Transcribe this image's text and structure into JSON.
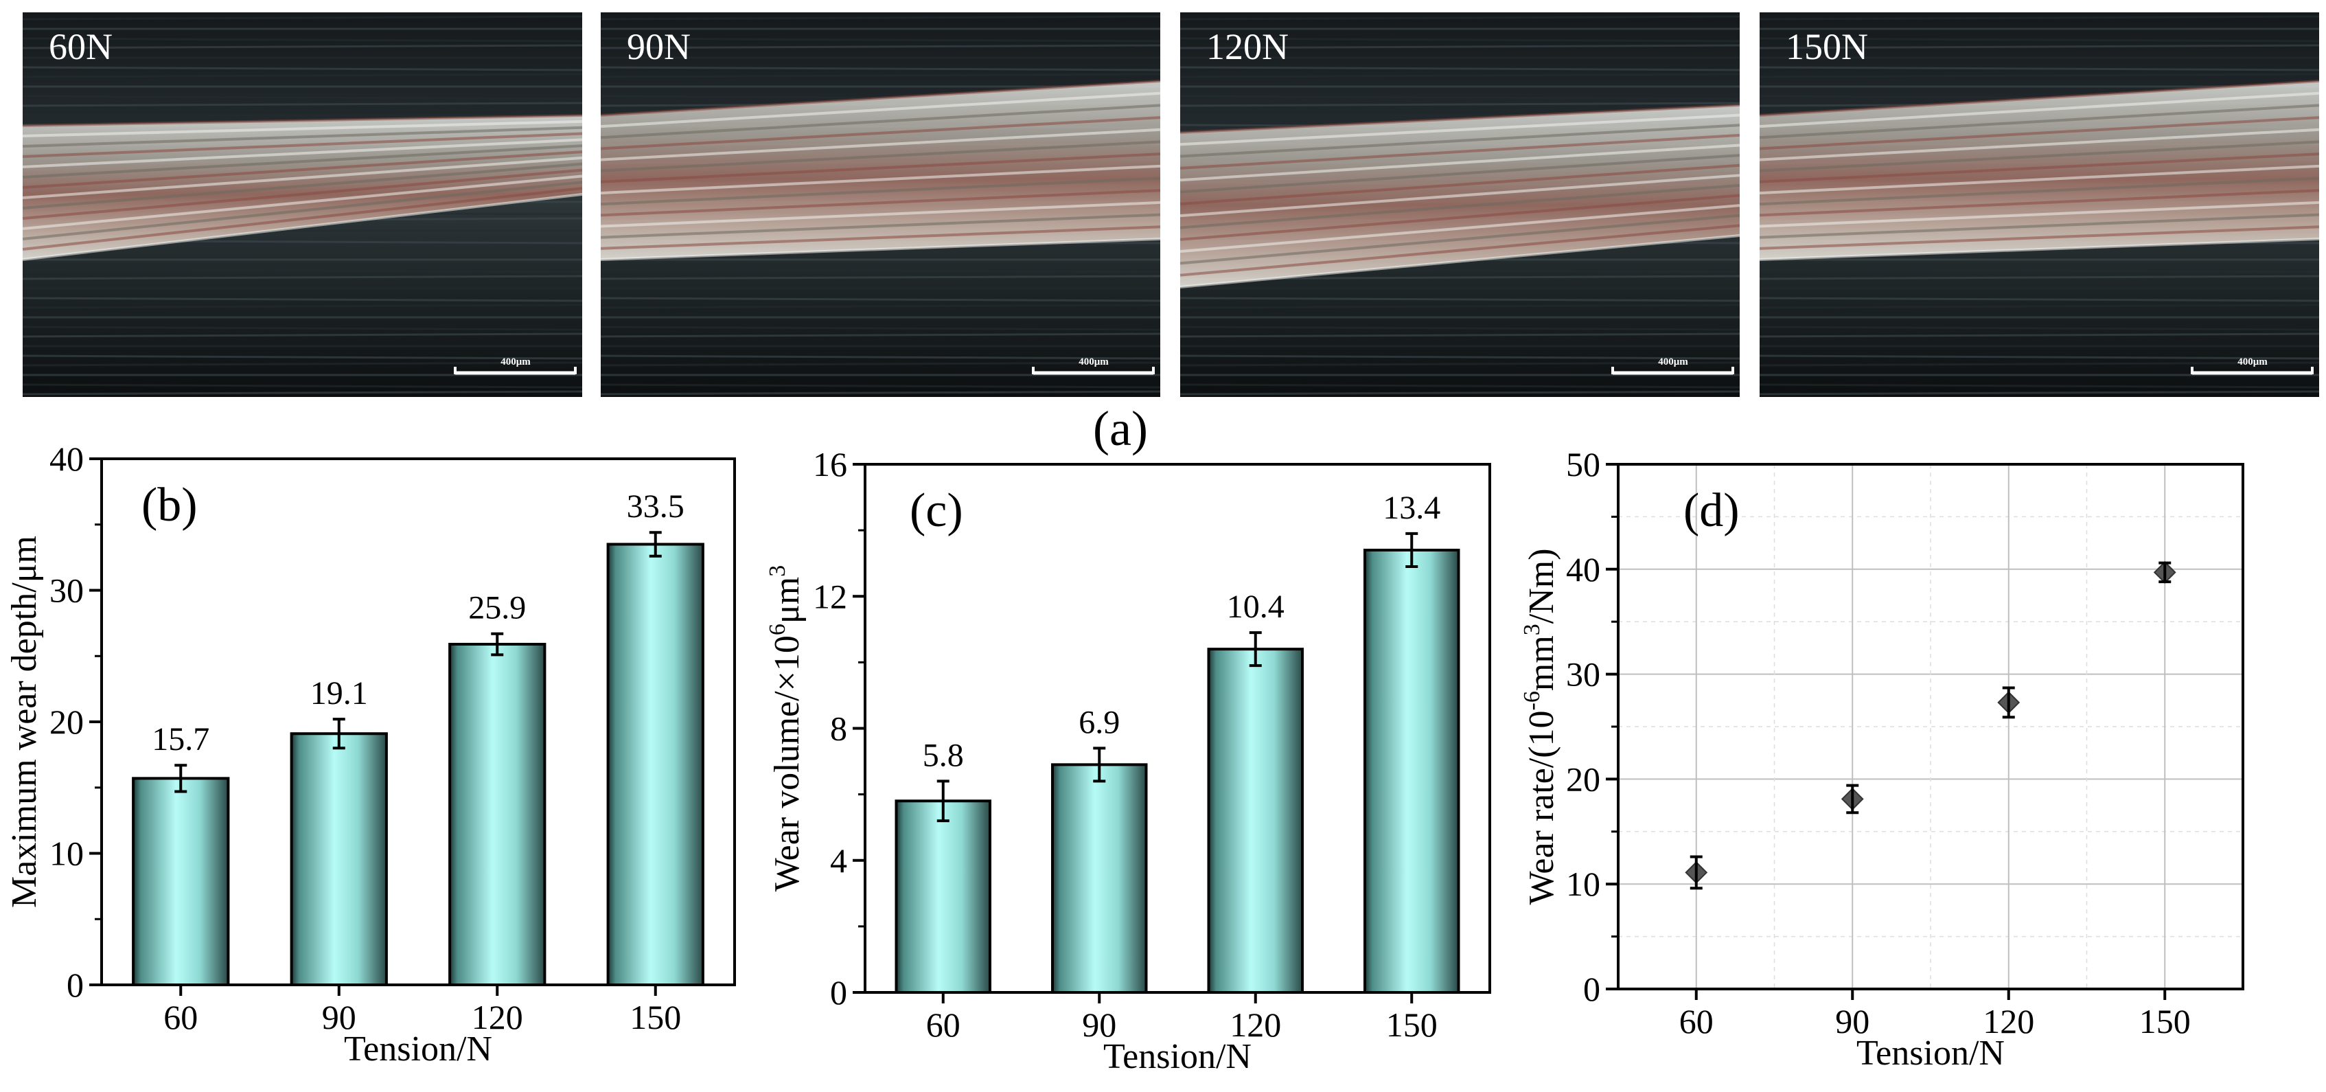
{
  "micrographs": {
    "caption": "(a)",
    "scale_bar": "400μm",
    "items": [
      {
        "label": "60N",
        "stripe": "diag-down"
      },
      {
        "label": "90N",
        "stripe": "flat"
      },
      {
        "label": "120N",
        "stripe": "diag-up"
      },
      {
        "label": "150N",
        "stripe": "flat"
      }
    ]
  },
  "colors": {
    "bar_light": "#b7fbf6",
    "bar_dark": "#1f3a38",
    "marker": "#555555",
    "grid": "#bfbfbf"
  },
  "chart_data": [
    {
      "panel": "(b)",
      "type": "bar",
      "categories": [
        "60",
        "90",
        "120",
        "150"
      ],
      "values": [
        15.7,
        19.1,
        25.9,
        33.5
      ],
      "errors": [
        1.0,
        1.1,
        0.8,
        0.9
      ],
      "value_labels": [
        "15.7",
        "19.1",
        "25.9",
        "33.5"
      ],
      "xlabel": "Tension/N",
      "ylabel": "Maximum wear depth/μm",
      "ylim": [
        0,
        40
      ],
      "yticks": [
        "0",
        "10",
        "20",
        "30",
        "40"
      ],
      "grid": false
    },
    {
      "panel": "(c)",
      "type": "bar",
      "categories": [
        "60",
        "90",
        "120",
        "150"
      ],
      "values": [
        5.8,
        6.9,
        10.4,
        13.4
      ],
      "errors": [
        0.6,
        0.5,
        0.5,
        0.5
      ],
      "value_labels": [
        "5.8",
        "6.9",
        "10.4",
        "13.4"
      ],
      "xlabel": "Tension/N",
      "ylabel_base": "Wear volume/×10",
      "ylabel_sup": "6",
      "ylabel_tail": "μm",
      "ylabel_sup2": "3",
      "ylim": [
        0,
        16
      ],
      "yticks": [
        "0",
        "4",
        "8",
        "12",
        "16"
      ],
      "grid": false
    },
    {
      "panel": "(d)",
      "type": "scatter",
      "x": [
        60,
        90,
        120,
        150
      ],
      "values": [
        11.1,
        18.1,
        27.3,
        39.7
      ],
      "errors": [
        1.5,
        1.3,
        1.4,
        0.9
      ],
      "categories": [
        "60",
        "90",
        "120",
        "150"
      ],
      "xlabel": "Tension/N",
      "ylabel_base": "Wear rate/(10",
      "ylabel_sup": "-6",
      "ylabel_mid": "mm",
      "ylabel_sup2": "3",
      "ylabel_tail": "/Nm)",
      "ylim": [
        0,
        50
      ],
      "yticks": [
        "0",
        "10",
        "20",
        "30",
        "40",
        "50"
      ],
      "grid": true,
      "marker": "diamond"
    }
  ]
}
